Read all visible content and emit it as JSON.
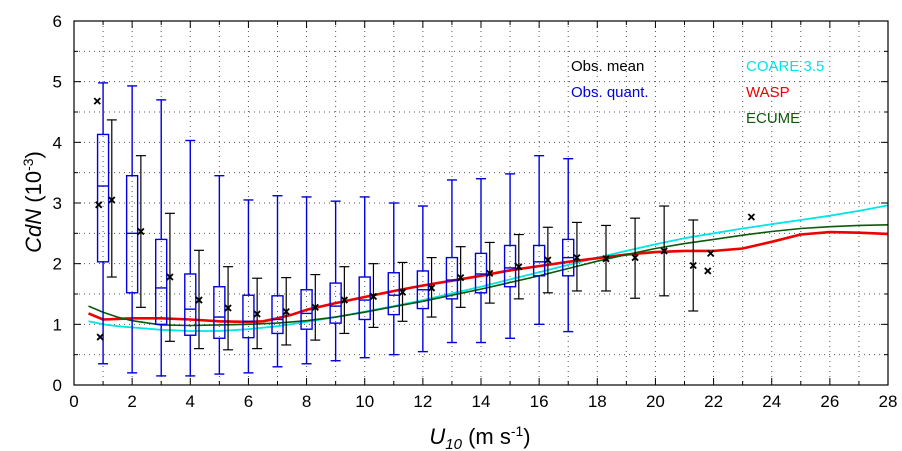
{
  "chart_data": {
    "type": "line",
    "xlabel": {
      "main": "U",
      "sub": "10",
      "unit": " (m s",
      "sup": "-1",
      "close": ")"
    },
    "ylabel": {
      "main": "CdN",
      "unit": " (10",
      "sup": "-3",
      "close": ")"
    },
    "xlim": [
      0,
      28
    ],
    "ylim": [
      0,
      6
    ],
    "xticks": [
      0,
      2,
      4,
      6,
      8,
      10,
      12,
      14,
      16,
      18,
      20,
      22,
      24,
      26,
      28
    ],
    "yticks": [
      0,
      1,
      2,
      3,
      4,
      5,
      6
    ],
    "grid": "dotted",
    "legend": {
      "placement": "top-right",
      "entries": [
        {
          "label": "Obs. mean",
          "color": "#000000"
        },
        {
          "label": "Obs. quant.",
          "color": "#0000dd"
        },
        {
          "label": "COARE 3.5",
          "color": "#00e5e5"
        },
        {
          "label": "WASP",
          "color": "#ee0000"
        },
        {
          "label": "ECUME",
          "color": "#0a5a0a"
        }
      ]
    },
    "obs_mean": [
      {
        "x": 0.8,
        "y": 4.68
      },
      {
        "x": 0.85,
        "y": 2.97
      },
      {
        "x": 0.9,
        "y": 0.79
      },
      {
        "x": 1.3,
        "y": 3.05
      },
      {
        "x": 2.3,
        "y": 2.53
      },
      {
        "x": 3.3,
        "y": 1.78
      },
      {
        "x": 4.3,
        "y": 1.4
      },
      {
        "x": 5.3,
        "y": 1.27
      },
      {
        "x": 6.3,
        "y": 1.17
      },
      {
        "x": 7.3,
        "y": 1.21
      },
      {
        "x": 8.3,
        "y": 1.28
      },
      {
        "x": 9.3,
        "y": 1.4
      },
      {
        "x": 10.3,
        "y": 1.46
      },
      {
        "x": 11.3,
        "y": 1.53
      },
      {
        "x": 12.3,
        "y": 1.6
      },
      {
        "x": 13.3,
        "y": 1.77
      },
      {
        "x": 14.3,
        "y": 1.84
      },
      {
        "x": 15.3,
        "y": 1.95
      },
      {
        "x": 16.3,
        "y": 2.06
      },
      {
        "x": 17.3,
        "y": 2.1
      },
      {
        "x": 18.3,
        "y": 2.08
      },
      {
        "x": 19.3,
        "y": 2.1
      },
      {
        "x": 20.3,
        "y": 2.21
      },
      {
        "x": 21.3,
        "y": 1.97
      },
      {
        "x": 21.8,
        "y": 1.88
      },
      {
        "x": 21.9,
        "y": 2.17
      },
      {
        "x": 23.3,
        "y": 2.77
      }
    ],
    "obs_mean_range": [
      {
        "x": 1.3,
        "low": 1.78,
        "high": 4.37
      },
      {
        "x": 2.3,
        "low": 1.28,
        "high": 3.78
      },
      {
        "x": 3.3,
        "low": 0.72,
        "high": 2.83
      },
      {
        "x": 4.3,
        "low": 0.6,
        "high": 2.22
      },
      {
        "x": 5.3,
        "low": 0.58,
        "high": 1.95
      },
      {
        "x": 6.3,
        "low": 0.6,
        "high": 1.76
      },
      {
        "x": 7.3,
        "low": 0.66,
        "high": 1.77
      },
      {
        "x": 8.3,
        "low": 0.74,
        "high": 1.82
      },
      {
        "x": 9.3,
        "low": 0.85,
        "high": 1.95
      },
      {
        "x": 10.3,
        "low": 0.95,
        "high": 2.0
      },
      {
        "x": 11.3,
        "low": 1.05,
        "high": 2.02
      },
      {
        "x": 12.3,
        "low": 1.12,
        "high": 2.1
      },
      {
        "x": 13.3,
        "low": 1.28,
        "high": 2.28
      },
      {
        "x": 14.3,
        "low": 1.35,
        "high": 2.35
      },
      {
        "x": 15.3,
        "low": 1.42,
        "high": 2.48
      },
      {
        "x": 16.3,
        "low": 1.52,
        "high": 2.6
      },
      {
        "x": 17.3,
        "low": 1.55,
        "high": 2.68
      },
      {
        "x": 18.3,
        "low": 1.55,
        "high": 2.63
      },
      {
        "x": 19.3,
        "low": 1.43,
        "high": 2.75
      },
      {
        "x": 20.3,
        "low": 1.47,
        "high": 2.95
      },
      {
        "x": 21.3,
        "low": 1.22,
        "high": 2.72
      }
    ],
    "obs_quant": [
      {
        "x": 1.0,
        "lo": 0.35,
        "q1": 2.03,
        "med": 3.28,
        "q3": 4.13,
        "hi": 4.98
      },
      {
        "x": 2.0,
        "lo": 0.2,
        "q1": 1.52,
        "med": 2.5,
        "q3": 3.45,
        "hi": 4.93
      },
      {
        "x": 3.0,
        "lo": 0.15,
        "q1": 1.0,
        "med": 1.6,
        "q3": 2.4,
        "hi": 4.7
      },
      {
        "x": 4.0,
        "lo": 0.15,
        "q1": 0.82,
        "med": 1.25,
        "q3": 1.83,
        "hi": 4.03
      },
      {
        "x": 5.0,
        "lo": 0.18,
        "q1": 0.77,
        "med": 1.12,
        "q3": 1.62,
        "hi": 3.45
      },
      {
        "x": 6.0,
        "lo": 0.2,
        "q1": 0.78,
        "med": 1.05,
        "q3": 1.48,
        "hi": 3.05
      },
      {
        "x": 7.0,
        "lo": 0.3,
        "q1": 0.85,
        "med": 1.08,
        "q3": 1.47,
        "hi": 3.12
      },
      {
        "x": 8.0,
        "lo": 0.35,
        "q1": 0.92,
        "med": 1.18,
        "q3": 1.57,
        "hi": 3.1
      },
      {
        "x": 9.0,
        "lo": 0.4,
        "q1": 1.02,
        "med": 1.3,
        "q3": 1.68,
        "hi": 3.03
      },
      {
        "x": 10.0,
        "lo": 0.45,
        "q1": 1.08,
        "med": 1.4,
        "q3": 1.78,
        "hi": 3.1
      },
      {
        "x": 11.0,
        "lo": 0.5,
        "q1": 1.16,
        "med": 1.48,
        "q3": 1.85,
        "hi": 3.0
      },
      {
        "x": 12.0,
        "lo": 0.55,
        "q1": 1.26,
        "med": 1.57,
        "q3": 1.88,
        "hi": 2.95
      },
      {
        "x": 13.0,
        "lo": 0.7,
        "q1": 1.42,
        "med": 1.73,
        "q3": 2.1,
        "hi": 3.38
      },
      {
        "x": 14.0,
        "lo": 0.7,
        "q1": 1.52,
        "med": 1.83,
        "q3": 2.17,
        "hi": 3.4
      },
      {
        "x": 15.0,
        "lo": 0.77,
        "q1": 1.62,
        "med": 1.93,
        "q3": 2.3,
        "hi": 3.48
      },
      {
        "x": 16.0,
        "lo": 1.0,
        "q1": 1.8,
        "med": 2.03,
        "q3": 2.3,
        "hi": 3.78
      },
      {
        "x": 17.0,
        "lo": 0.88,
        "q1": 1.8,
        "med": 2.1,
        "q3": 2.4,
        "hi": 3.73
      }
    ],
    "series": [
      {
        "name": "COARE 3.5",
        "color": "#00e5e5",
        "x": [
          0.5,
          1,
          1.5,
          2,
          3,
          4,
          5,
          6,
          7,
          8,
          9,
          10,
          11,
          12,
          13,
          14,
          15,
          16,
          17,
          18,
          19,
          20,
          21,
          22,
          23,
          24,
          25,
          26,
          27,
          28
        ],
        "y": [
          1.05,
          1.0,
          0.97,
          0.95,
          0.91,
          0.89,
          0.89,
          0.92,
          0.97,
          1.04,
          1.12,
          1.21,
          1.3,
          1.4,
          1.51,
          1.62,
          1.74,
          1.86,
          1.98,
          2.1,
          2.21,
          2.32,
          2.42,
          2.5,
          2.58,
          2.65,
          2.72,
          2.79,
          2.87,
          2.96
        ]
      },
      {
        "name": "WASP",
        "color": "#ee0000",
        "x": [
          0.5,
          1,
          1.5,
          2,
          3,
          4,
          5,
          6,
          6.5,
          7,
          7.5,
          8,
          9,
          10,
          11,
          12,
          13,
          14,
          15,
          16,
          17,
          18,
          19,
          20,
          21,
          22,
          23,
          24,
          25,
          26,
          27,
          28
        ],
        "y": [
          1.18,
          1.08,
          1.09,
          1.1,
          1.1,
          1.08,
          1.05,
          1.04,
          1.05,
          1.1,
          1.16,
          1.24,
          1.35,
          1.45,
          1.55,
          1.64,
          1.72,
          1.8,
          1.89,
          1.96,
          2.03,
          2.09,
          2.15,
          2.19,
          2.21,
          2.21,
          2.25,
          2.36,
          2.48,
          2.52,
          2.51,
          2.49
        ]
      },
      {
        "name": "ECUME",
        "color": "#0a5a0a",
        "x": [
          0.5,
          1,
          1.5,
          2,
          3,
          4,
          5,
          6,
          7,
          8,
          9,
          10,
          11,
          12,
          13,
          14,
          15,
          16,
          17,
          18,
          19,
          20,
          21,
          22,
          23,
          24,
          25,
          26,
          27,
          28
        ],
        "y": [
          1.3,
          1.2,
          1.12,
          1.06,
          0.99,
          0.98,
          0.99,
          1.0,
          1.02,
          1.06,
          1.12,
          1.2,
          1.29,
          1.38,
          1.48,
          1.58,
          1.69,
          1.8,
          1.92,
          2.04,
          2.15,
          2.25,
          2.33,
          2.4,
          2.47,
          2.53,
          2.58,
          2.61,
          2.63,
          2.64
        ]
      }
    ]
  }
}
